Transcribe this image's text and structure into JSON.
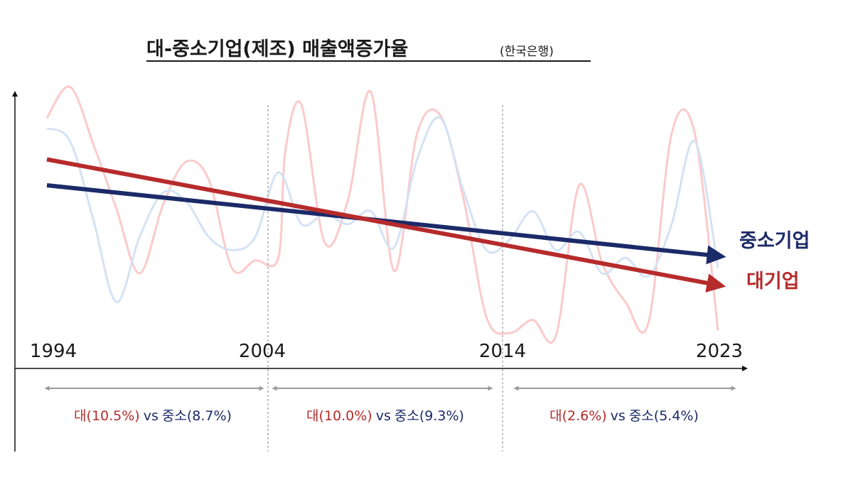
{
  "chart_data": {
    "type": "line",
    "title": "대-중소기업(제조) 매출액증가율",
    "source": "(한국은행)",
    "xlabel": "",
    "ylabel": "",
    "x_ticks": [
      "1994",
      "2004",
      "2014",
      "2023"
    ],
    "x_range": [
      1994,
      2023
    ],
    "y_range": [
      0,
      100
    ],
    "grid": false,
    "trend_series": [
      {
        "name": "중소기업",
        "color": "#1b2a68",
        "start": [
          1994,
          60
        ],
        "end": [
          2023,
          33
        ]
      },
      {
        "name": "대기업",
        "color": "#b62b2b",
        "start": [
          1994,
          70
        ],
        "end": [
          2023,
          22
        ]
      }
    ],
    "background_series": [
      {
        "color": "#fbcaca",
        "points": [
          [
            1994,
            86
          ],
          [
            1995,
            98
          ],
          [
            1996,
            76
          ],
          [
            1997,
            51
          ],
          [
            1998,
            26
          ],
          [
            1999,
            52
          ],
          [
            2000,
            69
          ],
          [
            2001,
            62
          ],
          [
            2002,
            28
          ],
          [
            2003,
            31
          ],
          [
            2004,
            32
          ],
          [
            2004.3,
            73
          ],
          [
            2005,
            91
          ],
          [
            2006,
            38
          ],
          [
            2007,
            54
          ],
          [
            2008,
            96
          ],
          [
            2009,
            27
          ],
          [
            2010,
            80
          ],
          [
            2011,
            87
          ],
          [
            2012,
            55
          ],
          [
            2013,
            9
          ],
          [
            2014,
            3
          ],
          [
            2015,
            8
          ],
          [
            2016,
            2
          ],
          [
            2017,
            60
          ],
          [
            2018,
            30
          ],
          [
            2019,
            15
          ],
          [
            2020,
            7
          ],
          [
            2021,
            80
          ],
          [
            2022,
            80
          ],
          [
            2023,
            4
          ]
        ]
      },
      {
        "color": "#d5e2f5",
        "points": [
          [
            1994,
            82
          ],
          [
            1995,
            77
          ],
          [
            1996,
            47
          ],
          [
            1997,
            15
          ],
          [
            1998,
            40
          ],
          [
            1999,
            57
          ],
          [
            2000,
            54
          ],
          [
            2001,
            40
          ],
          [
            2002,
            35
          ],
          [
            2003,
            40
          ],
          [
            2004,
            65
          ],
          [
            2005,
            45
          ],
          [
            2006,
            49
          ],
          [
            2007,
            45
          ],
          [
            2008,
            50
          ],
          [
            2009,
            36
          ],
          [
            2010,
            70
          ],
          [
            2011,
            86
          ],
          [
            2012,
            58
          ],
          [
            2013,
            35
          ],
          [
            2014,
            39
          ],
          [
            2015,
            50
          ],
          [
            2016,
            35
          ],
          [
            2017,
            42
          ],
          [
            2018,
            26
          ],
          [
            2019,
            32
          ],
          [
            2020,
            25
          ],
          [
            2021,
            45
          ],
          [
            2022,
            77
          ],
          [
            2023,
            28
          ]
        ]
      }
    ],
    "periods": [
      {
        "range": [
          1994,
          2004
        ],
        "large_label": "대(10.5%)",
        "vs": "vs",
        "small_label": "중소(8.7%)"
      },
      {
        "range": [
          2004,
          2014
        ],
        "large_label": "대(10.0%)",
        "vs": "vs",
        "small_label": "중소(9.3%)"
      },
      {
        "range": [
          2014,
          2023
        ],
        "large_label": "대(2.6%)",
        "vs": "vs",
        "small_label": "중소(5.4%)"
      }
    ],
    "colors": {
      "large": "#b62b2b",
      "small": "#1b2a68",
      "axis": "#111111",
      "divider": "#999999",
      "bracket": "#9a9a9a"
    }
  }
}
